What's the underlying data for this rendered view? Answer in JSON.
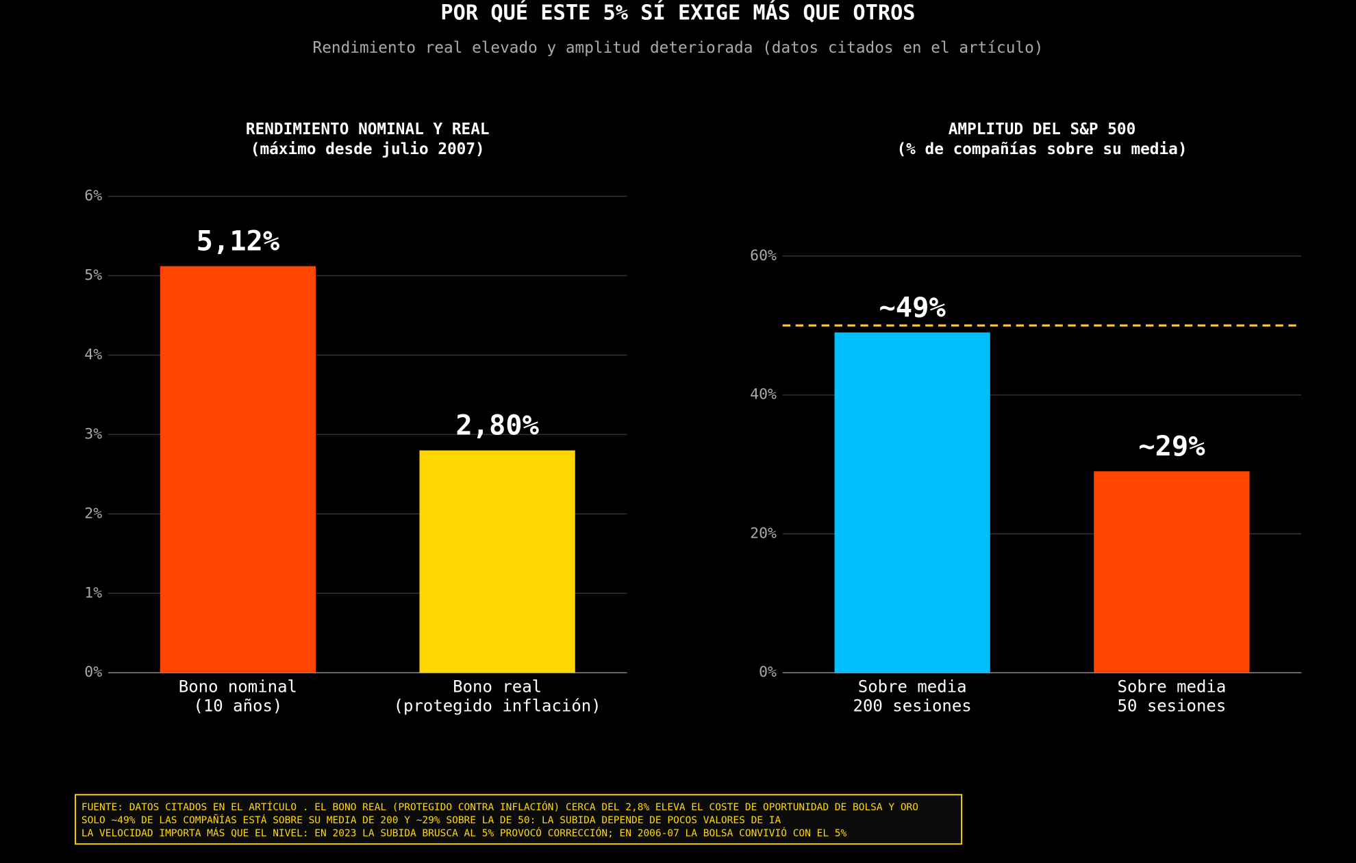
{
  "title": "POR QUÉ ESTE 5% SÍ EXIGE MÁS QUE OTROS",
  "subtitle": "Rendimiento real elevado y amplitud deteriorada (datos citados en el artículo)",
  "chart_data": [
    {
      "type": "bar",
      "title": [
        "RENDIMIENTO NOMINAL Y REAL",
        "(máximo desde julio 2007)"
      ],
      "categories": [
        [
          "Bono nominal",
          "(10 años)"
        ],
        [
          "Bono real",
          "(protegido inflación)"
        ]
      ],
      "values": [
        5.12,
        2.8
      ],
      "value_labels": [
        "5,12%",
        "2,80%"
      ],
      "colors": [
        "#ff4500",
        "#ffd700"
      ],
      "ylim": [
        0,
        6
      ],
      "yticks": [
        {
          "value": 0,
          "label": "0%"
        },
        {
          "value": 1,
          "label": "1%"
        },
        {
          "value": 2,
          "label": "2%"
        },
        {
          "value": 3,
          "label": "3%"
        },
        {
          "value": 4,
          "label": "4%"
        },
        {
          "value": 5,
          "label": "5%"
        },
        {
          "value": 6,
          "label": "6%"
        }
      ],
      "grid": true
    },
    {
      "type": "bar",
      "title": [
        "AMPLITUD DEL S&P 500",
        "(% de compañías sobre su media)"
      ],
      "categories": [
        [
          "Sobre media",
          "200 sesiones"
        ],
        [
          "Sobre media",
          "50 sesiones"
        ]
      ],
      "values": [
        49,
        29
      ],
      "value_labels": [
        "~49%",
        "~29%"
      ],
      "colors": [
        "#00bfff",
        "#ff4500"
      ],
      "ylim": [
        0,
        68.6
      ],
      "yticks": [
        {
          "value": 0,
          "label": "0%"
        },
        {
          "value": 20,
          "label": "20%"
        },
        {
          "value": 40,
          "label": "40%"
        },
        {
          "value": 60,
          "label": "60%"
        }
      ],
      "grid": true,
      "reference_line": {
        "value": 50,
        "color": "#ffc83d"
      }
    }
  ],
  "footer": [
    "FUENTE: DATOS CITADOS EN EL ARTÍCULO . EL BONO REAL (PROTEGIDO CONTRA INFLACIÓN) CERCA DEL 2,8% ELEVA EL COSTE DE OPORTUNIDAD DE BOLSA Y ORO",
    "SOLO ~49% DE LAS COMPAÑÍAS ESTÁ SOBRE SU MEDIA DE 200 Y ~29% SOBRE LA DE 50: LA SUBIDA DEPENDE DE POCOS VALORES DE IA",
    "LA VELOCIDAD IMPORTA MÁS QUE EL NIVEL: EN 2023 LA SUBIDA BRUSCA AL 5% PROVOCÓ CORRECCIÓN; EN 2006-07 LA BOLSA CONVIVIÓ CON EL 5%"
  ]
}
